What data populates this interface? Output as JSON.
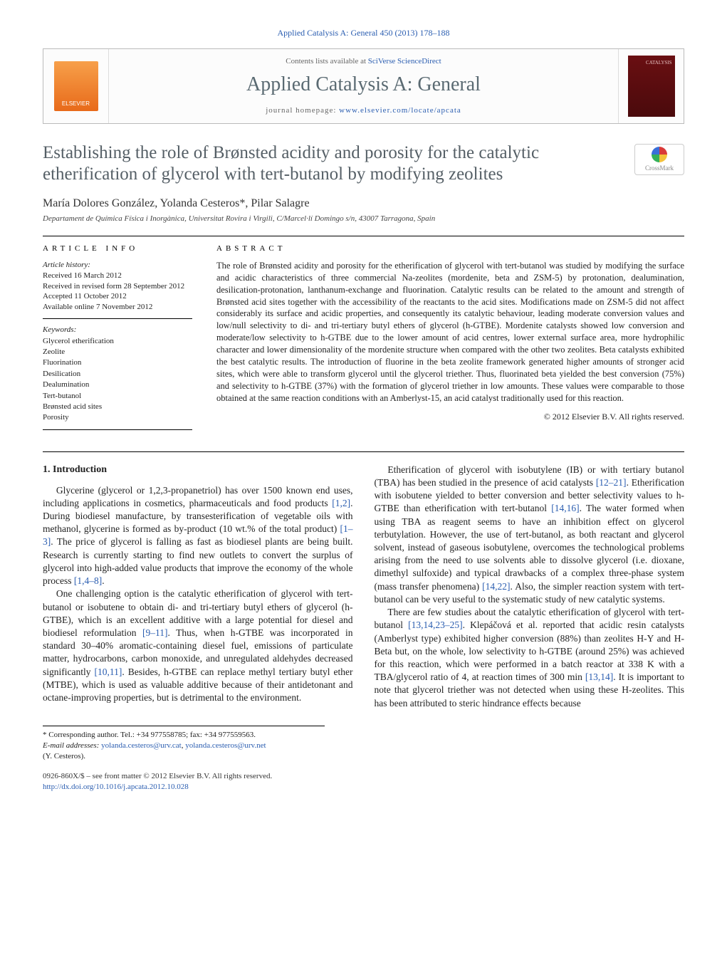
{
  "journalRef": "Applied Catalysis A: General 450 (2013) 178–188",
  "masthead": {
    "contentsLine": "Contents lists available at ",
    "contentsLink": "SciVerse ScienceDirect",
    "journalTitle": "Applied Catalysis A: General",
    "homepagePrefix": "journal homepage: ",
    "homepageUrl": "www.elsevier.com/locate/apcata",
    "publisherName": "ELSEVIER",
    "coverLabel": "CATALYSIS"
  },
  "crossmark": "CrossMark",
  "title": "Establishing the role of Brønsted acidity and porosity for the catalytic etherification of glycerol with tert-butanol by modifying zeolites",
  "authors": "María Dolores González, Yolanda Cesteros*, Pilar Salagre",
  "affiliation": "Departament de Química Física i Inorgànica, Universitat Rovira i Virgili, C/Marcel·lí Domingo s/n, 43007 Tarragona, Spain",
  "articleInfo": {
    "heading": "article info",
    "historyLabel": "Article history:",
    "received": "Received 16 March 2012",
    "revised": "Received in revised form 28 September 2012",
    "accepted": "Accepted 11 October 2012",
    "online": "Available online 7 November 2012",
    "keywordsLabel": "Keywords:",
    "keywords": [
      "Glycerol etherification",
      "Zeolite",
      "Fluorination",
      "Desilication",
      "Dealumination",
      "Tert-butanol",
      "Brønsted acid sites",
      "Porosity"
    ]
  },
  "abstract": {
    "heading": "abstract",
    "text": "The role of Brønsted acidity and porosity for the etherification of glycerol with tert-butanol was studied by modifying the surface and acidic characteristics of three commercial Na-zeolites (mordenite, beta and ZSM-5) by protonation, dealumination, desilication-protonation, lanthanum-exchange and fluorination. Catalytic results can be related to the amount and strength of Brønsted acid sites together with the accessibility of the reactants to the acid sites. Modifications made on ZSM-5 did not affect considerably its surface and acidic properties, and consequently its catalytic behaviour, leading moderate conversion values and low/null selectivity to di- and tri-tertiary butyl ethers of glycerol (h-GTBE). Mordenite catalysts showed low conversion and moderate/low selectivity to h-GTBE due to the lower amount of acid centres, lower external surface area, more hydrophilic character and lower dimensionality of the mordenite structure when compared with the other two zeolites. Beta catalysts exhibited the best catalytic results. The introduction of fluorine in the beta zeolite framework generated higher amounts of stronger acid sites, which were able to transform glycerol until the glycerol triether. Thus, fluorinated beta yielded the best conversion (75%) and selectivity to h-GTBE (37%) with the formation of glycerol triether in low amounts. These values were comparable to those obtained at the same reaction conditions with an Amberlyst-15, an acid catalyst traditionally used for this reaction.",
    "copyright": "© 2012 Elsevier B.V. All rights reserved."
  },
  "section1": {
    "heading": "1. Introduction",
    "p1a": "Glycerine (glycerol or 1,2,3-propanetriol) has over 1500 known end uses, including applications in cosmetics, pharmaceuticals and food products ",
    "c1": "[1,2]",
    "p1b": ". During biodiesel manufacture, by transesterification of vegetable oils with methanol, glycerine is formed as by-product (10 wt.% of the total product) ",
    "c2": "[1–3]",
    "p1c": ". The price of glycerol is falling as fast as biodiesel plants are being built. Research is currently starting to find new outlets to convert the surplus of glycerol into high-added value products that improve the economy of the whole process ",
    "c3": "[1,4–8]",
    "p1d": ".",
    "p2a": "One challenging option is the catalytic etherification of glycerol with tert-butanol or isobutene to obtain di- and tri-tertiary butyl ethers of glycerol (h-GTBE), which is an excellent additive with a large potential for diesel and biodiesel reformulation ",
    "c4": "[9–11]",
    "p2b": ". Thus, when h-GTBE was incorporated in standard 30–40% aromatic-containing diesel fuel, emissions of particulate matter, hydrocarbons, carbon monoxide, and unregulated aldehydes decreased significantly ",
    "c5": "[10,11]",
    "p2c": ". Besides, h-GTBE can replace methyl tertiary butyl ether (MTBE), which is used as valuable additive because of their antidetonant and octane-improving properties, but is detrimental to the environment.",
    "p3a": "Etherification of glycerol with isobutylene (IB) or with tertiary butanol (TBA) has been studied in the presence of acid catalysts ",
    "c6": "[12–21]",
    "p3b": ". Etherification with isobutene yielded to better conversion and better selectivity values to h-GTBE than etherification with tert-butanol ",
    "c7": "[14,16]",
    "p3c": ". The water formed when using TBA as reagent seems to have an inhibition effect on glycerol terbutylation. However, the use of tert-butanol, as both reactant and glycerol solvent, instead of gaseous isobutylene, overcomes the technological problems arising from the need to use solvents able to dissolve glycerol (i.e. dioxane, dimethyl sulfoxide) and typical drawbacks of a complex three-phase system (mass transfer phenomena) ",
    "c8": "[14,22]",
    "p3d": ". Also, the simpler reaction system with tert-butanol can be very useful to the systematic study of new catalytic systems.",
    "p4a": "There are few studies about the catalytic etherification of glycerol with tert-butanol ",
    "c9": "[13,14,23–25]",
    "p4b": ". Klepáčová et al. reported that acidic resin catalysts (Amberlyst type) exhibited higher conversion (88%) than zeolites H-Y and H-Beta but, on the whole, low selectivity to h-GTBE (around 25%) was achieved for this reaction, which were performed in a batch reactor at 338 K with a TBA/glycerol ratio of 4, at reaction times of 300 min ",
    "c10": "[13,14]",
    "p4c": ". It is important to note that glycerol triether was not detected when using these H-zeolites. This has been attributed to steric hindrance effects because"
  },
  "footnotes": {
    "corr": "* Corresponding author. Tel.: +34 977558785; fax: +34 977559563.",
    "emailLabel": "E-mail addresses: ",
    "email1": "yolanda.cesteros@urv.cat",
    "sep": ", ",
    "email2": "yolanda.cesteros@urv.net",
    "name": "(Y. Cesteros)."
  },
  "bottom": {
    "issn": "0926-860X/$ – see front matter © 2012 Elsevier B.V. All rights reserved.",
    "doi": "http://dx.doi.org/10.1016/j.apcata.2012.10.028"
  }
}
